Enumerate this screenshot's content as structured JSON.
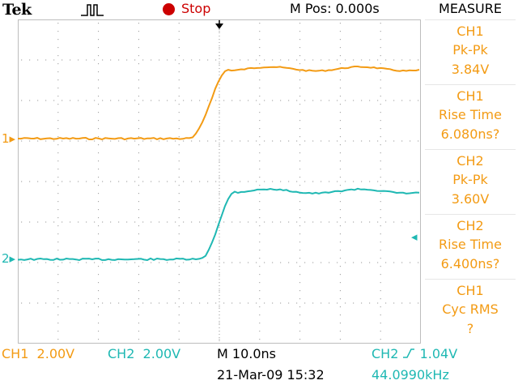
{
  "header": {
    "brand": "Tek",
    "run_state": "Stop",
    "m_pos": "M Pos: 0.000s",
    "panel_title": "MEASURE"
  },
  "channels": {
    "ch1": {
      "marker": "1",
      "color": "#f39b14"
    },
    "ch2": {
      "marker": "2",
      "color": "#1fb8b3"
    }
  },
  "measurements": [
    {
      "source": "CH1",
      "type": "Pk-Pk",
      "value": "3.84V"
    },
    {
      "source": "CH1",
      "type": "Rise Time",
      "value": "6.080ns?"
    },
    {
      "source": "CH2",
      "type": "Pk-Pk",
      "value": "3.60V"
    },
    {
      "source": "CH2",
      "type": "Rise Time",
      "value": "6.400ns?"
    },
    {
      "source": "CH1",
      "type": "Cyc RMS",
      "value": "?"
    }
  ],
  "footer": {
    "ch1_scale": "CH1  2.00V",
    "ch2_scale": "CH2  2.00V",
    "timebase": "M 10.0ns",
    "trigger_src": "CH2",
    "trigger_level": "1.04V",
    "date": "21-Mar-09 15:32",
    "frequency": "44.0990kHz"
  },
  "colors": {
    "ch1": "#f39b14",
    "ch2": "#1fb8b3",
    "stop": "#cc0000",
    "grid": "#bfbfbf"
  }
}
